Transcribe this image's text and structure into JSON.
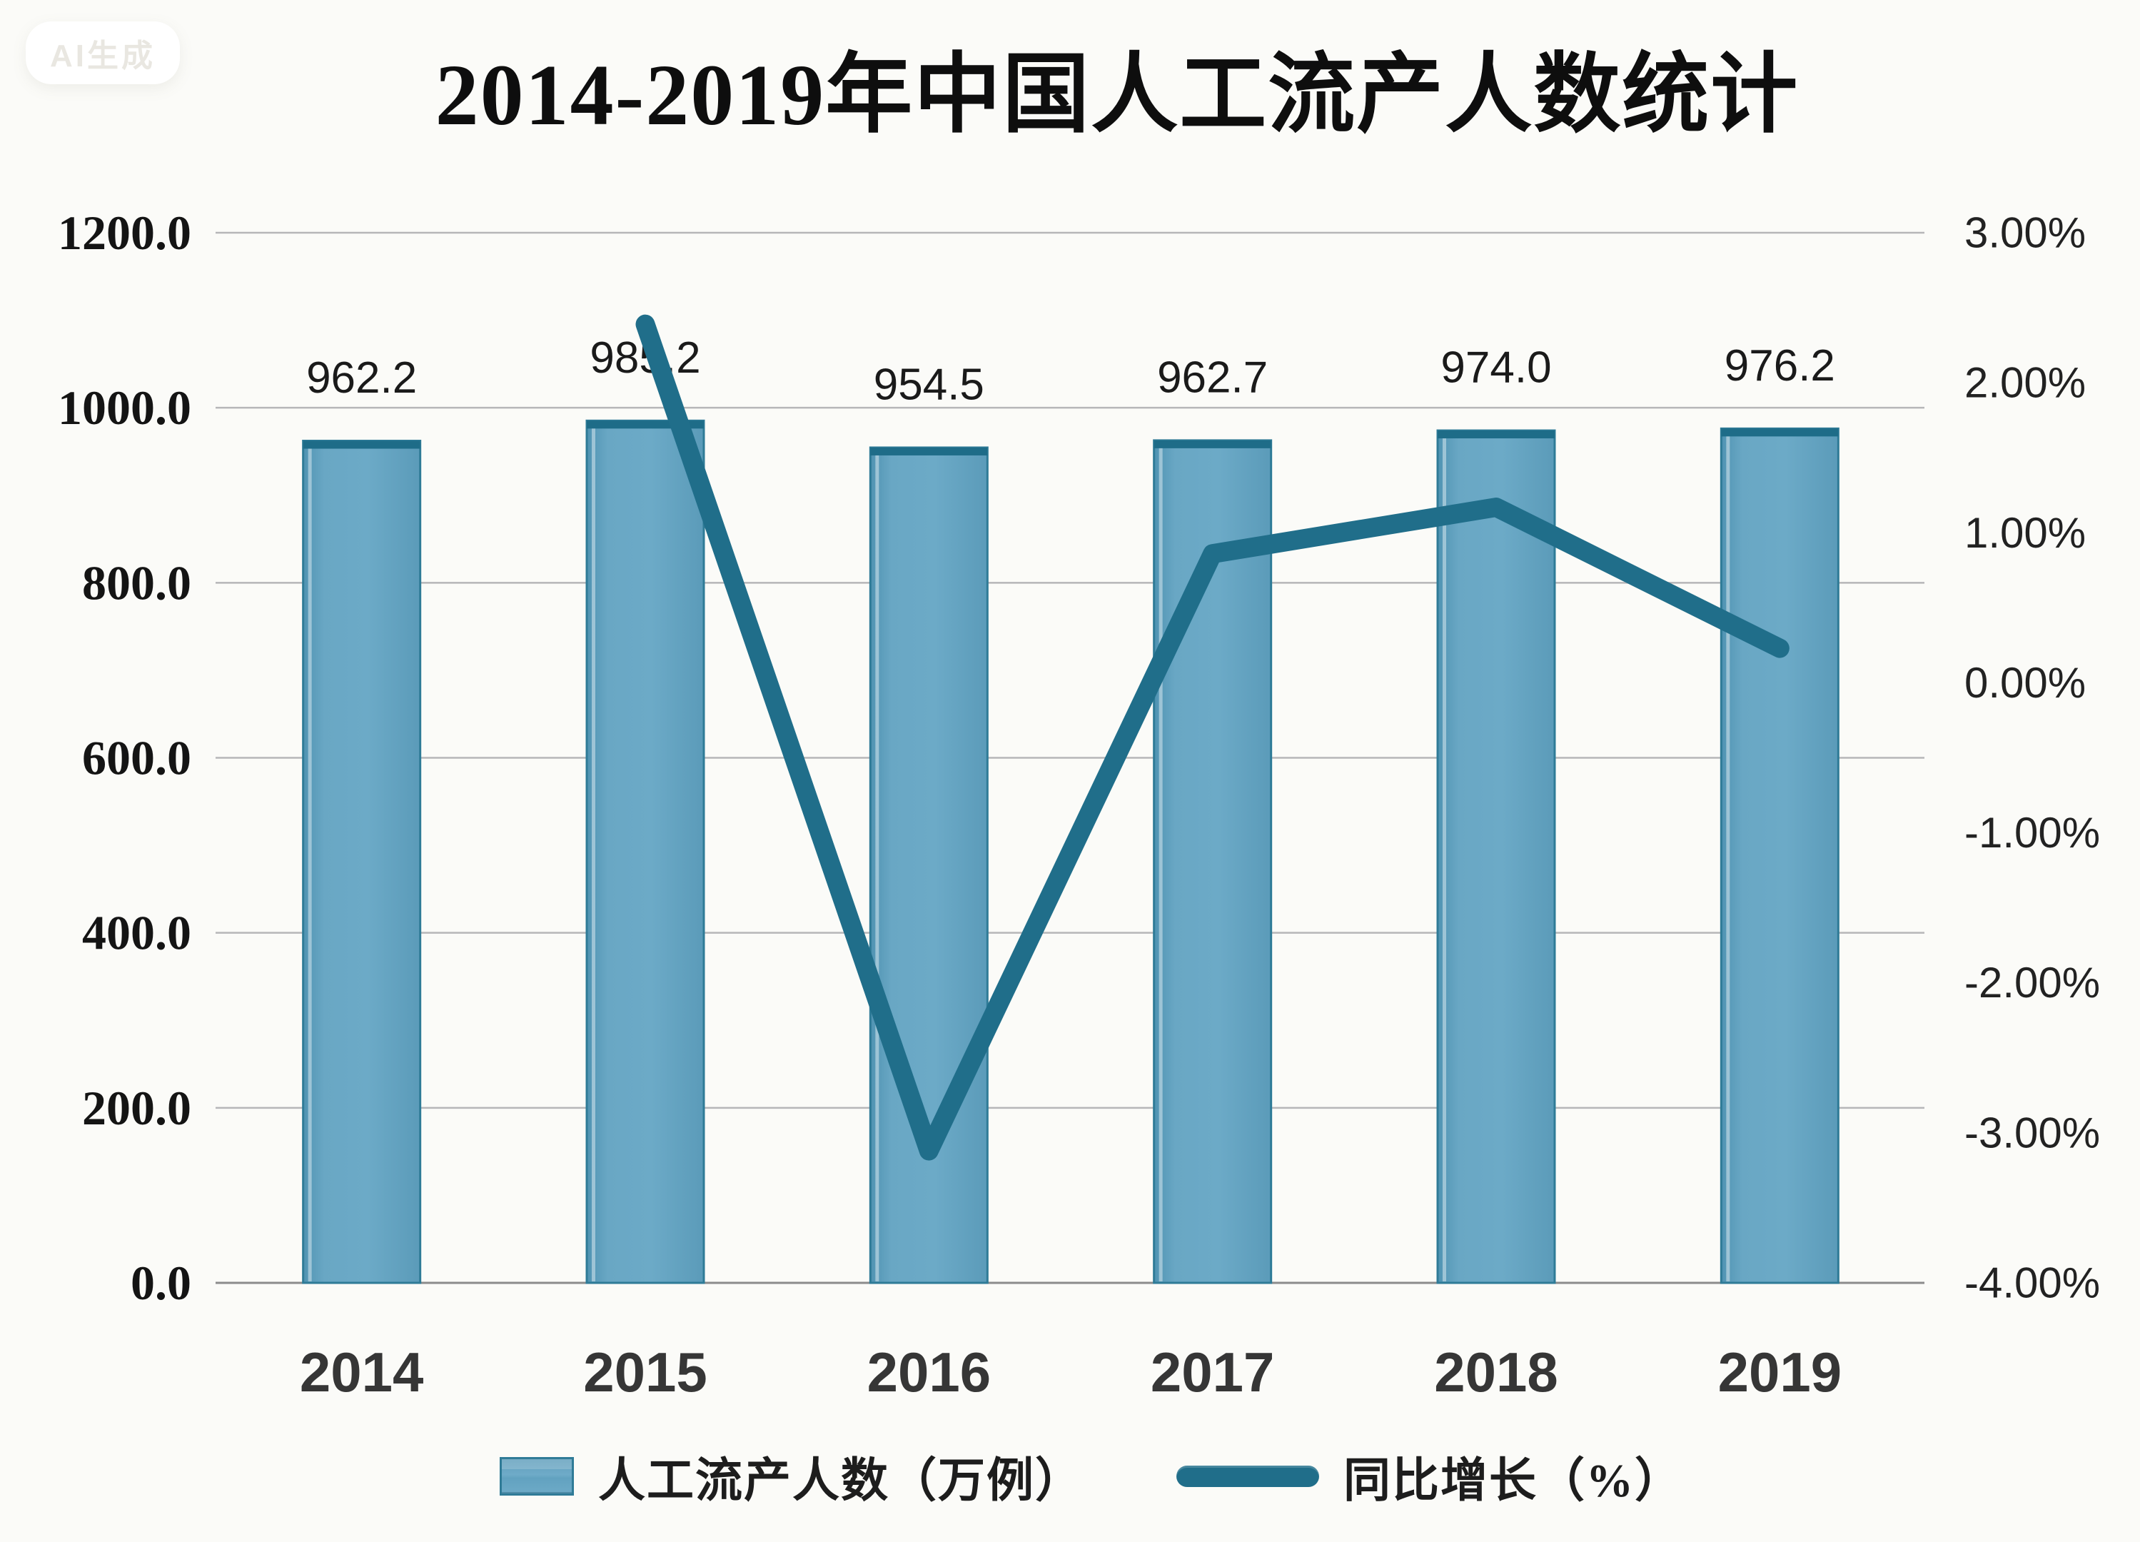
{
  "watermark": "AI生成",
  "title": "2014-2019年中国人工流产人数统计",
  "legend": [
    {
      "label": "人工流产人数（万例）",
      "type": "bar",
      "color": "#67a6c3"
    },
    {
      "label": "同比增长（%）",
      "type": "line",
      "color": "#206e8a"
    }
  ],
  "colors": {
    "bar_fill": "#67a6c3",
    "bar_edge": "#2f7b97",
    "bar_top_band": "#1e6c88",
    "line": "#206e8a",
    "grid": "#b6b6b8",
    "axis": "#8b8b8b"
  },
  "chart_data": {
    "type": "bar",
    "subtype": "combo-bar-line-dual-axis",
    "title": "2014-2019年中国人工流产人数统计",
    "categories": [
      "2014",
      "2015",
      "2016",
      "2017",
      "2018",
      "2019"
    ],
    "series": [
      {
        "name": "人工流产人数（万例）",
        "type": "bar",
        "axis": "left",
        "values": [
          962.2,
          985.2,
          954.5,
          962.7,
          974.0,
          976.2
        ],
        "data_labels": [
          "962.2",
          "985.2",
          "954.5",
          "962.7",
          "974.0",
          "976.2"
        ],
        "color": "#67a6c3"
      },
      {
        "name": "同比增长（%）",
        "type": "line",
        "axis": "right",
        "values": [
          null,
          2.39,
          -3.12,
          0.86,
          1.17,
          0.23
        ],
        "color": "#206e8a"
      }
    ],
    "left_axis": {
      "min": 0,
      "max": 1200,
      "step": 200,
      "ticks": [
        "1200.0",
        "1000.0",
        "800.0",
        "600.0",
        "400.0",
        "200.0",
        "0.0"
      ]
    },
    "right_axis": {
      "min": -4,
      "max": 3,
      "step": 1,
      "ticks": [
        "3.00%",
        "2.00%",
        "1.00%",
        "0.00%",
        "-1.00%",
        "-2.00%",
        "-3.00%",
        "-4.00%"
      ]
    },
    "grid": true,
    "legend_position": "bottom"
  }
}
